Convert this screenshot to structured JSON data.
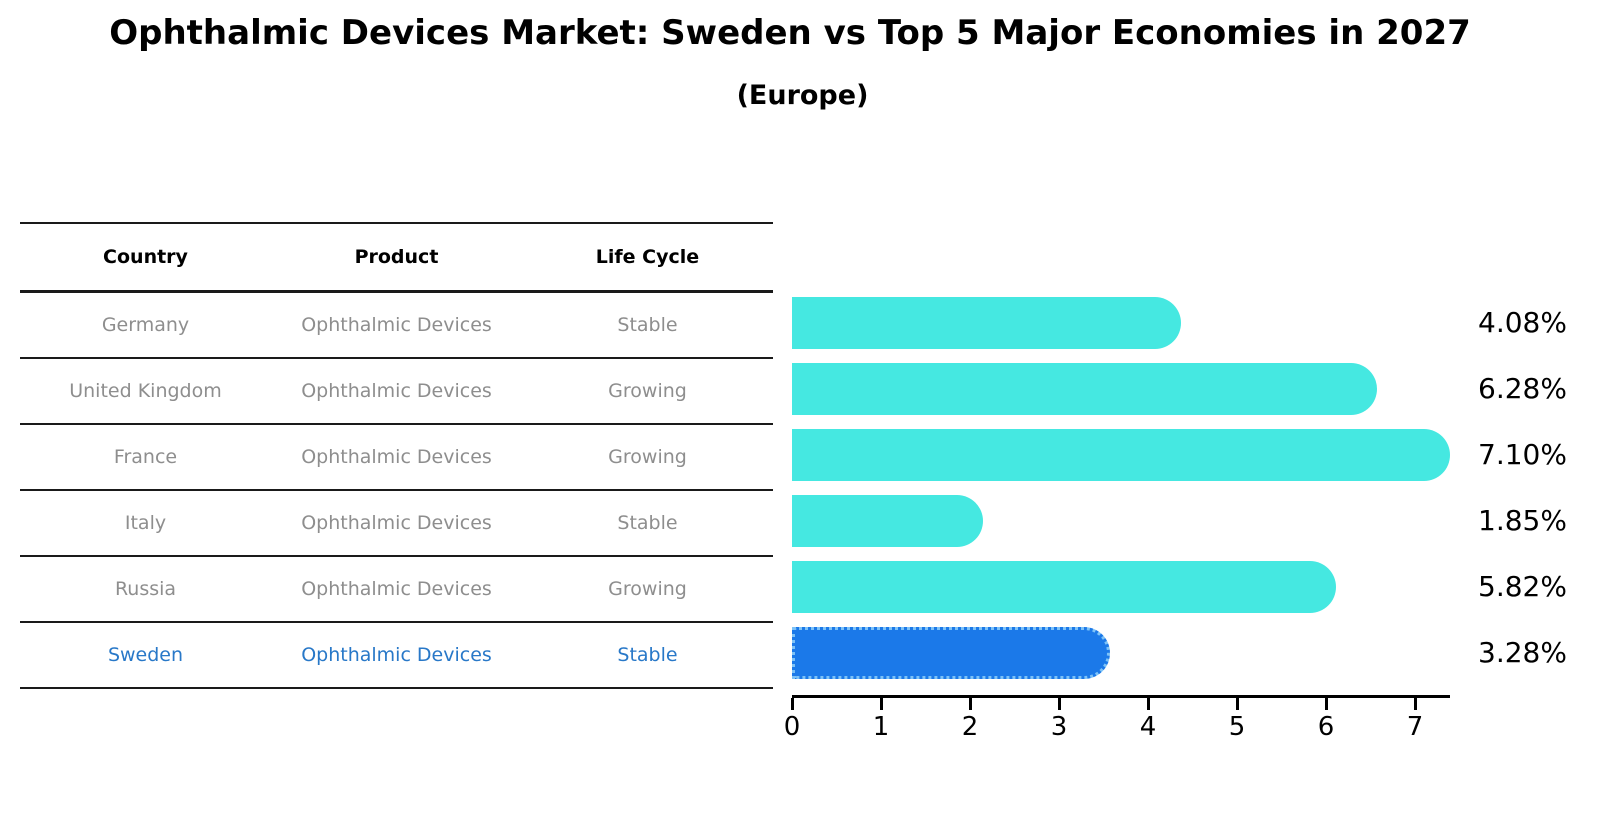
{
  "title": "Ophthalmic Devices Market: Sweden vs Top 5 Major Economies in 2027",
  "subtitle": "(Europe)",
  "table": {
    "headers": [
      "Country",
      "Product",
      "Life Cycle"
    ],
    "rows": [
      {
        "country": "Germany",
        "product": "Ophthalmic Devices",
        "life_cycle": "Stable",
        "highlighted": false
      },
      {
        "country": "United Kingdom",
        "product": "Ophthalmic Devices",
        "life_cycle": "Growing",
        "highlighted": false
      },
      {
        "country": "France",
        "product": "Ophthalmic Devices",
        "life_cycle": "Growing",
        "highlighted": false
      },
      {
        "country": "Italy",
        "product": "Ophthalmic Devices",
        "life_cycle": "Stable",
        "highlighted": false
      },
      {
        "country": "Russia",
        "product": "Ophthalmic Devices",
        "life_cycle": "Growing",
        "highlighted": false
      },
      {
        "country": "Sweden",
        "product": "Ophthalmic Devices",
        "life_cycle": "Stable",
        "highlighted": true
      }
    ]
  },
  "chart_data": {
    "type": "bar",
    "orientation": "horizontal",
    "title": "Ophthalmic Devices Market: Sweden vs Top 5 Major Economies in 2027 (Europe)",
    "categories": [
      "Germany",
      "United Kingdom",
      "France",
      "Italy",
      "Russia",
      "Sweden"
    ],
    "values": [
      4.08,
      6.28,
      7.1,
      1.85,
      5.82,
      3.28
    ],
    "value_labels": [
      "4.08%",
      "6.28%",
      "7.10%",
      "1.85%",
      "5.82%",
      "3.28%"
    ],
    "xlabel": "",
    "ylabel": "",
    "xlim": [
      0,
      7.5
    ],
    "xticks": [
      0,
      1,
      2,
      3,
      4,
      5,
      6,
      7
    ],
    "grid": false,
    "legend": false,
    "highlight_index": 5,
    "bar_color": "#45E8E1",
    "highlight_color": "#1B79E9",
    "highlight_edge_color": "#7DC2F7",
    "highlight_text_color": "#2878C8",
    "value_label_color": "#000000"
  }
}
